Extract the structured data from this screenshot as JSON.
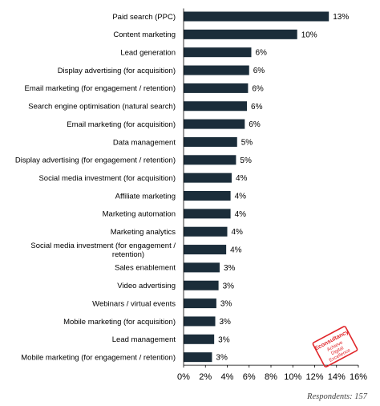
{
  "chart_data": {
    "type": "bar",
    "orientation": "horizontal",
    "categories": [
      "Paid search (PPC)",
      "Content marketing",
      "Lead generation",
      "Display advertising (for acquisition)",
      "Email marketing (for engagement / retention)",
      "Search engine optimisation (natural search)",
      "Email marketing (for acquisition)",
      "Data management",
      "Display advertising (for engagement / retention)",
      "Social media investment (for acquisition)",
      "Affiliate marketing",
      "Marketing automation",
      "Marketing analytics",
      "Social media investment (for engagement / retention)",
      "Sales enablement",
      "Video advertising",
      "Webinars / virtual events",
      "Mobile marketing (for acquisition)",
      "Lead management",
      "Mobile marketing (for engagement / retention)"
    ],
    "category_lines": [
      [
        "Paid search (PPC)"
      ],
      [
        "Content marketing"
      ],
      [
        "Lead generation"
      ],
      [
        "Display advertising (for acquisition)"
      ],
      [
        "Email marketing (for engagement / retention)"
      ],
      [
        "Search engine optimisation (natural search)"
      ],
      [
        "Email marketing (for acquisition)"
      ],
      [
        "Data management"
      ],
      [
        "Display advertising (for engagement / retention)"
      ],
      [
        "Social media investment (for acquisition)"
      ],
      [
        "Affiliate marketing"
      ],
      [
        "Marketing automation"
      ],
      [
        "Marketing analytics"
      ],
      [
        "Social media investment (for engagement /",
        "retention)"
      ],
      [
        "Sales enablement"
      ],
      [
        "Video advertising"
      ],
      [
        "Webinars / virtual events"
      ],
      [
        "Mobile marketing (for acquisition)"
      ],
      [
        "Lead management"
      ],
      [
        "Mobile marketing (for engagement / retention)"
      ]
    ],
    "values": [
      13.3,
      10.4,
      6.2,
      6.0,
      5.9,
      5.8,
      5.6,
      4.9,
      4.8,
      4.4,
      4.3,
      4.3,
      4.0,
      3.9,
      3.3,
      3.2,
      3.0,
      2.9,
      2.8,
      2.6
    ],
    "value_labels": [
      "13%",
      "10%",
      "6%",
      "6%",
      "6%",
      "6%",
      "6%",
      "5%",
      "5%",
      "4%",
      "4%",
      "4%",
      "4%",
      "4%",
      "3%",
      "3%",
      "3%",
      "3%",
      "3%",
      "3%"
    ],
    "x_ticks": [
      0,
      2,
      4,
      6,
      8,
      10,
      12,
      14,
      16
    ],
    "x_tick_labels": [
      "0%",
      "2%",
      "4%",
      "6%",
      "8%",
      "10%",
      "12%",
      "14%",
      "16%"
    ],
    "xlim": [
      0,
      16
    ],
    "grid": false,
    "bar_color": "#1b2d3a",
    "title": "",
    "xlabel": "",
    "ylabel": ""
  },
  "footnote": "Respondents: 157",
  "logo": {
    "text_lines": [
      "Econsultancy",
      "Achieve",
      "Digital",
      "Excellence"
    ],
    "color": "#e0262a"
  }
}
